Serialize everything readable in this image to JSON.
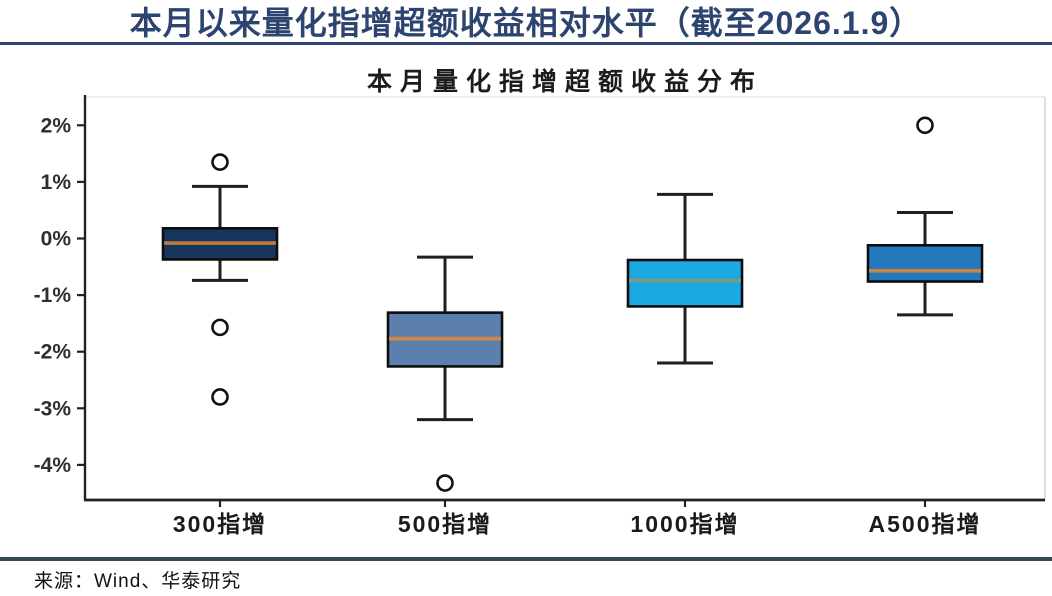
{
  "header": {
    "title": "本月以来量化指增超额收益相对水平（截至2026.1.9）",
    "accent_color": "#2e4372"
  },
  "footer": {
    "source": "来源：Wind、华泰研究"
  },
  "chart_data": {
    "type": "boxplot",
    "title": "本月量化指增超额收益分布",
    "xlabel": "",
    "ylabel": "",
    "unit": "%",
    "grid": false,
    "legend": false,
    "ylim": [
      -4.62,
      2.5
    ],
    "y_ticks": [
      {
        "value": 2,
        "label": "2%"
      },
      {
        "value": 1,
        "label": "1%"
      },
      {
        "value": 0,
        "label": "0%"
      },
      {
        "value": -1,
        "label": "-1%"
      },
      {
        "value": -2,
        "label": "-2%"
      },
      {
        "value": -3,
        "label": "-3%"
      },
      {
        "value": -4,
        "label": "-4%"
      }
    ],
    "categories": [
      "300指增",
      "500指增",
      "1000指增",
      "A500指增"
    ],
    "series": [
      {
        "name": "300指增",
        "whisker_low": -0.74,
        "q1": -0.37,
        "median": -0.08,
        "q3": 0.18,
        "whisker_high": 0.92,
        "outliers": [
          1.35,
          -1.57,
          -2.8
        ],
        "box_color": "#17365d",
        "median_color": "#c07a3e"
      },
      {
        "name": "500指增",
        "whisker_low": -3.2,
        "q1": -2.26,
        "median": -1.77,
        "q3": -1.31,
        "whisker_high": -0.33,
        "outliers": [
          -4.32
        ],
        "box_color": "#5b80ae",
        "median_color": "#cf8743"
      },
      {
        "name": "1000指增",
        "whisker_low": -2.2,
        "q1": -1.2,
        "median": -0.74,
        "q3": -0.38,
        "whisker_high": 0.78,
        "outliers": [],
        "box_color": "#1ba9e3",
        "median_color": "#7f997f"
      },
      {
        "name": "A500指增",
        "whisker_low": -1.35,
        "q1": -0.76,
        "median": -0.57,
        "q3": -0.12,
        "whisker_high": 0.46,
        "outliers": [
          2.0
        ],
        "box_color": "#2478bc",
        "median_color": "#c6863f"
      }
    ],
    "style": {
      "line_color": "#1f1f1f",
      "outlier_stroke": "#111111",
      "plot_border_color": "#c9c9c9",
      "tick_label_color": "#2e2e2e",
      "category_label_color": "#1a1a1a"
    }
  }
}
